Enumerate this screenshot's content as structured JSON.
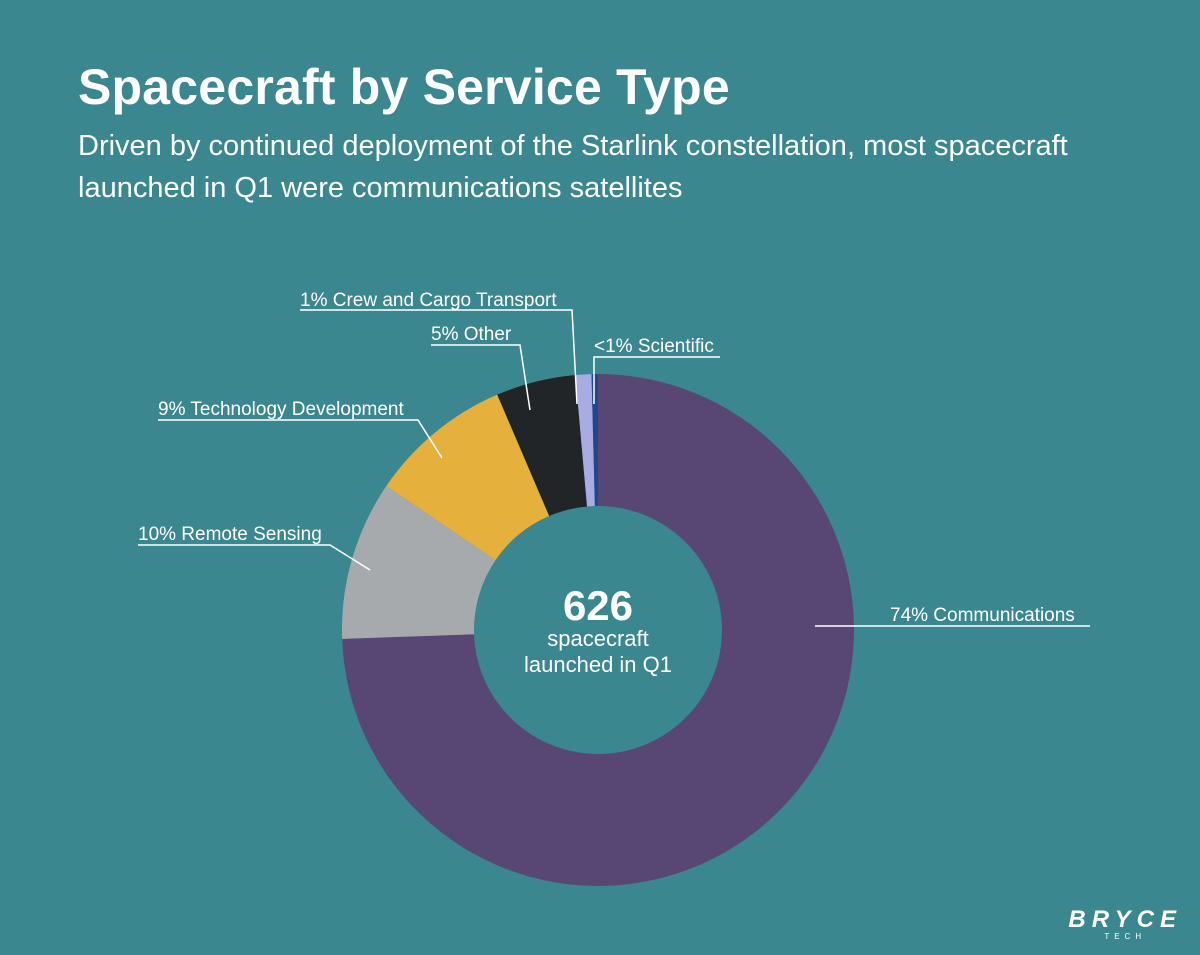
{
  "header": {
    "title": "Spacecraft by Service Type",
    "subtitle": "Driven by continued deployment of the Starlink constellation, most spacecraft launched in Q1 were communications satellites"
  },
  "chart_data": {
    "type": "pie",
    "variant": "donut",
    "center": {
      "value": "626",
      "line1": "spacecraft",
      "line2": "launched in Q1"
    },
    "total": 626,
    "slices": [
      {
        "label": "74% Communications",
        "percent": 74,
        "color": "#584774"
      },
      {
        "label": "10% Remote Sensing",
        "percent": 10,
        "color": "#a6aaad"
      },
      {
        "label": "9% Technology Development",
        "percent": 9,
        "color": "#e6b03c"
      },
      {
        "label": "5% Other",
        "percent": 5,
        "color": "#222528"
      },
      {
        "label": "1% Crew and Cargo Transport",
        "percent": 1,
        "color": "#a9ace2"
      },
      {
        "label": "<1% Scientific",
        "percent": 0.4,
        "color": "#20468c"
      }
    ],
    "start": "12 o'clock",
    "direction": "clockwise",
    "legend": "none (callout labels)"
  },
  "logo": {
    "main": "BRYCE",
    "sub": "TECH"
  }
}
